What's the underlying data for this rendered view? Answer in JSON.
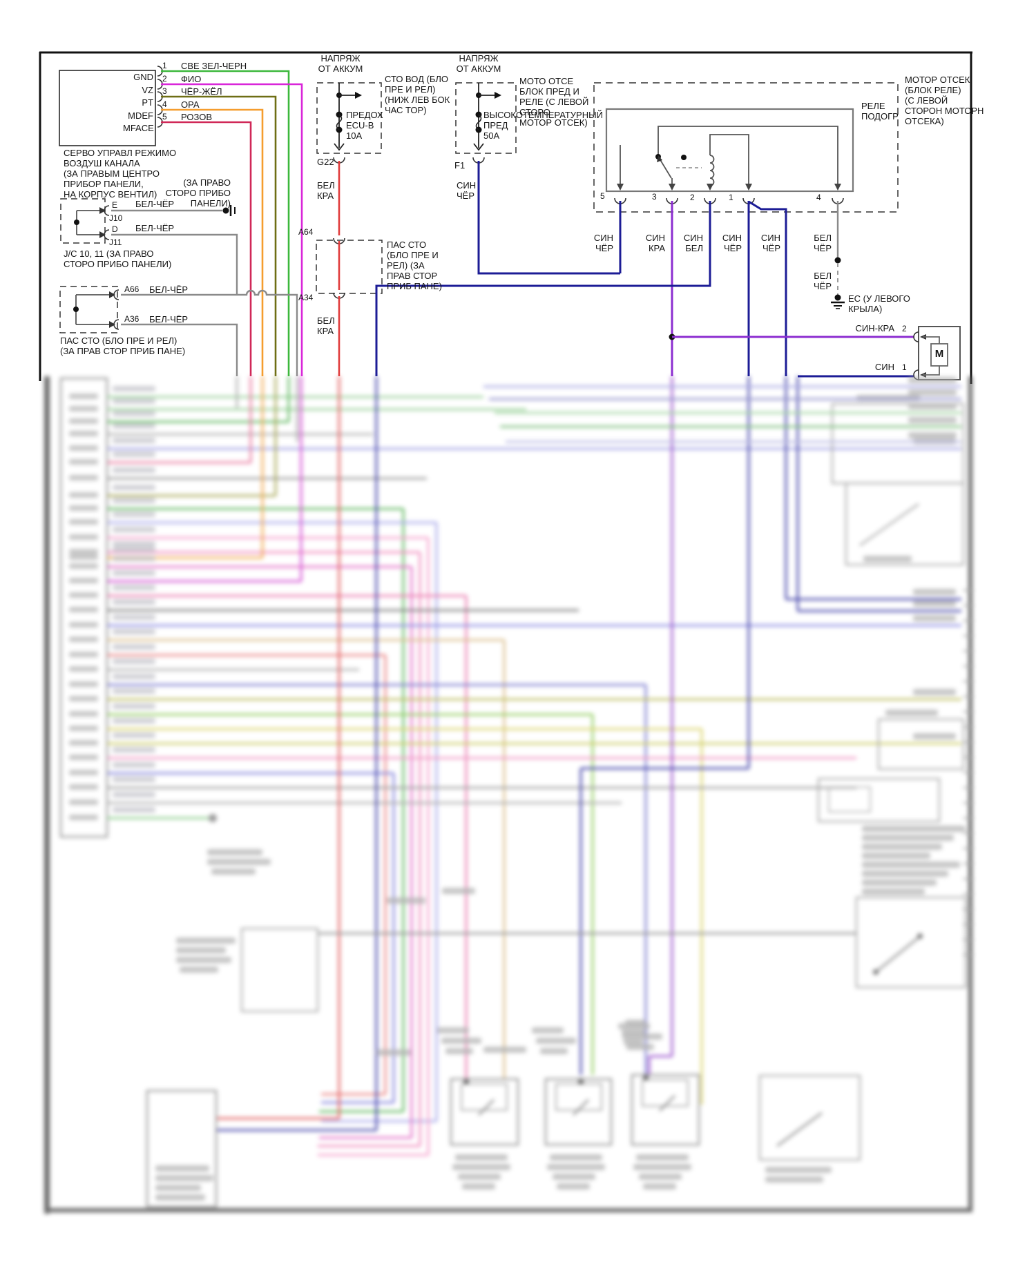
{
  "diagram": {
    "servo": {
      "pin_names": [
        "GND",
        "VZ",
        "PT",
        "MDEF",
        "MFACE"
      ],
      "pin_numbers": [
        "1",
        "2",
        "3",
        "4",
        "5"
      ],
      "wire_colors": [
        "СВЕ ЗЕЛ-ЧЕРН",
        "ФИО",
        "ЧЁР-ЖЁЛ",
        "ОРА",
        "РОЗОВ"
      ],
      "caption": "СЕРВО УПРАВЛ РЕЖИМО\nВОЗДУШ КАНАЛА\n(ЗА ПРАВЫМ ЦЕНТРО\nПРИБОР ПАНЕЛИ,\nНА КОРПУС ВЕНТИЛ)",
      "location_note": "(ЗА ПРАВО\nСТОРО ПРИБО\nПАНЕЛИ)"
    },
    "junction": {
      "pin_e": "E",
      "name_j10": "J10",
      "pin_d": "D",
      "name_j11": "J11",
      "wire1": "БЕЛ-ЧЁР",
      "wire2": "БЕЛ-ЧЁР",
      "caption": "J/C 10, 11 (ЗА ПРАВО\nСТОРО ПРИБО ПАНЕЛИ)"
    },
    "pass_through": {
      "a66": "A66",
      "a36": "A36",
      "wire1": "БЕЛ-ЧЁР",
      "wire2": "БЕЛ-ЧЁР",
      "caption": "ПАС СТО (БЛО ПРЕ И РЕЛ)\n(ЗА ПРАВ СТОР ПРИБ ПАНЕ)"
    },
    "ecu_b_circuit": {
      "source": "НАПРЯЖ\nОТ АККУМ",
      "fuse": "ПРЕДОХ\nECU-B\n10A",
      "box_note": "СТО ВОД (БЛО\nПРЕ И РЕЛ)\n(НИЖ ЛЕВ БОК\nЧАС ТОР)",
      "connector": "G22",
      "wire_a": "БЕЛ\nКРА",
      "a64": "A64",
      "pass_note": "ПАС СТО\n(БЛО ПРЕ И\nРЕЛ) (ЗА\nПРАВ СТОР\nПРИБ ПАНЕ)",
      "a34": "A34",
      "wire_b": "БЕЛ\nКРА"
    },
    "main_circuit": {
      "source": "НАПРЯЖ\nОТ АККУМ",
      "fuse": "ВЫСОКОТЕМПЕРАТУРНЫЙ\nПРЕД\n50A",
      "box_note": "МОТО ОТСЕ\nБЛОК ПРЕД И\nРЕЛЕ (С ЛЕВОЙ\nСТОРО\nМОТОР ОТСЕК)",
      "connector": "F1",
      "wire": "СИН\nЧЁР"
    },
    "relay": {
      "name": "РЕЛЕ\nПОДОГР",
      "location": "МОТОР ОТСЕК\n(БЛОК РЕЛЕ)\n(С ЛЕВОЙ\nСТОРОН МОТОРН\nОТСЕКА)",
      "pin_numbers": [
        "5",
        "3",
        "2",
        "1",
        "4"
      ],
      "wires": [
        "СИН\nЧЁР",
        "СИН\nКРА",
        "СИН\nБЕЛ",
        "СИН\nЧЁР",
        "СИН\nЧЁР",
        "БЕЛ\nЧЁР"
      ],
      "wire_pin4_lower": "БЕЛ\nЧЁР",
      "ground": "ЕС (У ЛЕВОГО\nКРЫЛА)"
    },
    "motor": {
      "wire2": "СИН-КРА",
      "pin2": "2",
      "wire1": "СИН",
      "pin1": "1",
      "symbol": "М"
    },
    "colors": {
      "green": "#3db83d",
      "magenta": "#d926d9",
      "olive": "#6e6e14",
      "orange": "#f59d2e",
      "pink": "#d02858",
      "red": "#e03c3c",
      "navy": "#1c1c96",
      "violet": "#8c2ed0",
      "gray": "#8a8a8a"
    }
  }
}
